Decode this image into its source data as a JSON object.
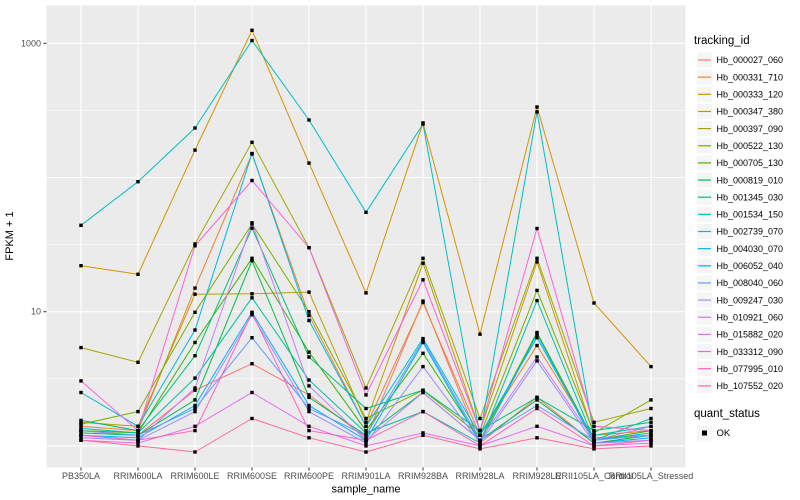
{
  "style": {
    "page_bg": "#FFFFFF",
    "panel_bg": "#EBEBEB",
    "grid_color": "#FFFFFF",
    "axis_text_color": "#4D4D4D",
    "axis_title_color": "#000000",
    "tick_mark_color": "#333333",
    "point_color": "#000000"
  },
  "chart_data": {
    "type": "line",
    "title": "",
    "xlabel": "sample_name",
    "ylabel": "FPKM + 1",
    "y_scale": "log10",
    "ylim": [
      0.75,
      1800
    ],
    "grid": true,
    "legend_position": "right",
    "y_ticks": [
      {
        "value": 1000,
        "label": "1000"
      },
      {
        "value": 10,
        "label": "10"
      }
    ],
    "y_gridlines_major": [
      1,
      10,
      100,
      1000
    ],
    "y_gridlines_minor": [
      3.162,
      31.62,
      316.2
    ],
    "categories": [
      "PB350LA",
      "RRIM600LA",
      "RRIM600LE",
      "RRIM600SE",
      "RRIM600PE",
      "RRIM901LA",
      "RRIM928BA",
      "RRIM928LA",
      "RRIM928LE",
      "RRII105LA_Control",
      "RRII105LA_Stressed"
    ],
    "legend_title": "tracking_id",
    "series": [
      {
        "name": "Hb_000027_060",
        "color": "#F8766D",
        "values": [
          1.3,
          1.2,
          2.6,
          4.1,
          2.4,
          1.15,
          12,
          1.05,
          2.3,
          1.05,
          1.1
        ]
      },
      {
        "name": "Hb_000331_710",
        "color": "#EA8331",
        "values": [
          1.4,
          1.3,
          15,
          150,
          9.4,
          1.4,
          11.7,
          1.2,
          5.6,
          1.15,
          1.2
        ]
      },
      {
        "name": "Hb_000333_120",
        "color": "#D89000",
        "values": [
          22,
          19,
          160,
          1250,
          128,
          13.8,
          255,
          6.8,
          335,
          11.6,
          3.9
        ]
      },
      {
        "name": "Hb_000347_380",
        "color": "#C09B00",
        "values": [
          1.5,
          1.4,
          13.5,
          13.6,
          14,
          1.5,
          23,
          1.3,
          23.5,
          1.2,
          1.3
        ]
      },
      {
        "name": "Hb_000397_090",
        "color": "#A3A500",
        "values": [
          5.4,
          4.2,
          32,
          183,
          30,
          2.7,
          25,
          1.6,
          25,
          1.5,
          1.9
        ]
      },
      {
        "name": "Hb_000522_130",
        "color": "#7CAE00",
        "values": [
          1.45,
          1.8,
          9.9,
          45,
          10,
          1.6,
          2.6,
          1.2,
          14.4,
          1.25,
          2.2
        ]
      },
      {
        "name": "Hb_000705_130",
        "color": "#39B600",
        "values": [
          1.3,
          1.25,
          5.9,
          25,
          5,
          1.3,
          4.9,
          1.1,
          7,
          1.1,
          1.3
        ]
      },
      {
        "name": "Hb_000819_010",
        "color": "#00BB4E",
        "values": [
          1.25,
          1.2,
          2.2,
          24,
          2.3,
          1.2,
          2.5,
          1.1,
          2.2,
          1.05,
          1.2
        ]
      },
      {
        "name": "Hb_001345_030",
        "color": "#00BF7D",
        "values": [
          1.55,
          1.3,
          4.7,
          42,
          4.6,
          1.9,
          2.6,
          1.3,
          2.3,
          1.3,
          1.5
        ]
      },
      {
        "name": "Hb_001534_150",
        "color": "#00C1A3",
        "values": [
          1.35,
          1.25,
          3.2,
          12.7,
          3.1,
          1.25,
          1.8,
          1.05,
          12.1,
          1.1,
          1.6
        ]
      },
      {
        "name": "Hb_002739_070",
        "color": "#00BFC4",
        "values": [
          44,
          93,
          234,
          1050,
          268,
          55,
          250,
          1.2,
          308,
          1.2,
          1.4
        ]
      },
      {
        "name": "Hb_004030_070",
        "color": "#00BAE0",
        "values": [
          2.5,
          1.4,
          7.3,
          151,
          8.6,
          1.4,
          6.3,
          1.2,
          6.4,
          1.1,
          1.25
        ]
      },
      {
        "name": "Hb_006052_040",
        "color": "#00B0F6",
        "values": [
          1.2,
          1.15,
          2,
          9.9,
          2,
          1.1,
          5.9,
          1.05,
          6.8,
          1.05,
          1.15
        ]
      },
      {
        "name": "Hb_008040_060",
        "color": "#619CFF",
        "values": [
          1.3,
          1.2,
          1.9,
          6.4,
          1.9,
          1.2,
          6.1,
          1.1,
          2,
          1.1,
          1.2
        ]
      },
      {
        "name": "Hb_009247_030",
        "color": "#9590FF",
        "values": [
          1.15,
          1.1,
          1.8,
          9.5,
          1.8,
          1.05,
          3.9,
          1.05,
          4.3,
          1.05,
          1.1
        ]
      },
      {
        "name": "Hb_010921_060",
        "color": "#C77CFF",
        "values": [
          1.2,
          1.1,
          2.7,
          46,
          2.8,
          1.1,
          2.5,
          1.1,
          4.6,
          1.1,
          1.4
        ]
      },
      {
        "name": "Hb_015882_020",
        "color": "#E76BF3",
        "values": [
          1.1,
          1.05,
          1.4,
          2.5,
          1.4,
          1,
          1.25,
          1,
          1.4,
          1,
          1.05
        ]
      },
      {
        "name": "Hb_033312_090",
        "color": "#FA62DB",
        "values": [
          3.05,
          1.3,
          31,
          95,
          30,
          2.4,
          17.3,
          1.3,
          41.7,
          1.4,
          1.3
        ]
      },
      {
        "name": "Hb_077995_010",
        "color": "#FF62BC",
        "values": [
          1.2,
          1.1,
          1.3,
          9.8,
          1.3,
          1.1,
          1.8,
          1,
          1.9,
          1,
          1.1
        ]
      },
      {
        "name": "Hb_107552_020",
        "color": "#FF6A98",
        "values": [
          1.1,
          1,
          0.9,
          1.6,
          1.15,
          0.9,
          1.2,
          0.95,
          1.15,
          0.95,
          1
        ]
      }
    ],
    "legend2": {
      "title": "quant_status",
      "items": [
        {
          "label": "OK",
          "marker": "square",
          "color": "#000000"
        }
      ]
    }
  }
}
